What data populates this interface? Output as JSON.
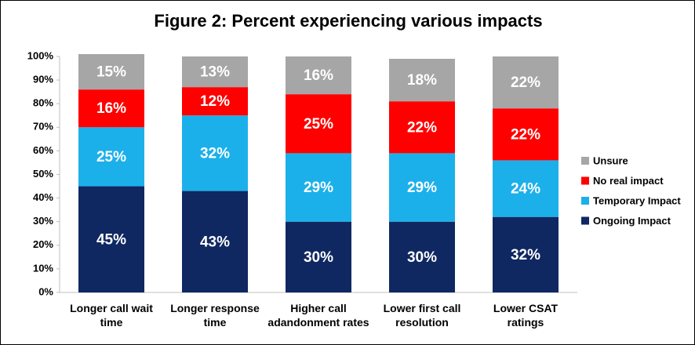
{
  "chart_data": {
    "type": "stacked_bar",
    "title": "Figure 2: Percent experiencing various impacts",
    "categories": [
      "Longer call wait time",
      "Longer response time",
      "Higher call adandonment rates",
      "Lower first call resolution",
      "Lower CSAT ratings"
    ],
    "series": [
      {
        "name": "Ongoing Impact",
        "color": "#0f2862",
        "values": [
          45,
          43,
          30,
          30,
          32
        ],
        "value_labels": [
          "45%",
          "43%",
          "30%",
          "30%",
          "32%"
        ]
      },
      {
        "name": "Temporary Impact",
        "color": "#1cb0ea",
        "values": [
          25,
          32,
          29,
          29,
          24
        ],
        "value_labels": [
          "25%",
          "32%",
          "29%",
          "29%",
          "24%"
        ]
      },
      {
        "name": "No real impact",
        "color": "#ff0000",
        "values": [
          16,
          12,
          25,
          22,
          22
        ],
        "value_labels": [
          "16%",
          "12%",
          "25%",
          "22%",
          "22%"
        ]
      },
      {
        "name": "Unsure",
        "color": "#a6a6a6",
        "values": [
          15,
          13,
          16,
          18,
          22
        ],
        "value_labels": [
          "15%",
          "13%",
          "16%",
          "18%",
          "22%"
        ]
      }
    ],
    "ylim": [
      0,
      100
    ],
    "yticks": [
      {
        "value": 0,
        "label": "0%"
      },
      {
        "value": 10,
        "label": "10%"
      },
      {
        "value": 20,
        "label": "20%"
      },
      {
        "value": 30,
        "label": "30%"
      },
      {
        "value": 40,
        "label": "40%"
      },
      {
        "value": 50,
        "label": "50%"
      },
      {
        "value": 60,
        "label": "60%"
      },
      {
        "value": 70,
        "label": "70%"
      },
      {
        "value": 80,
        "label": "80%"
      },
      {
        "value": 90,
        "label": "90%"
      },
      {
        "value": 100,
        "label": "100%"
      }
    ],
    "legend": "right"
  }
}
